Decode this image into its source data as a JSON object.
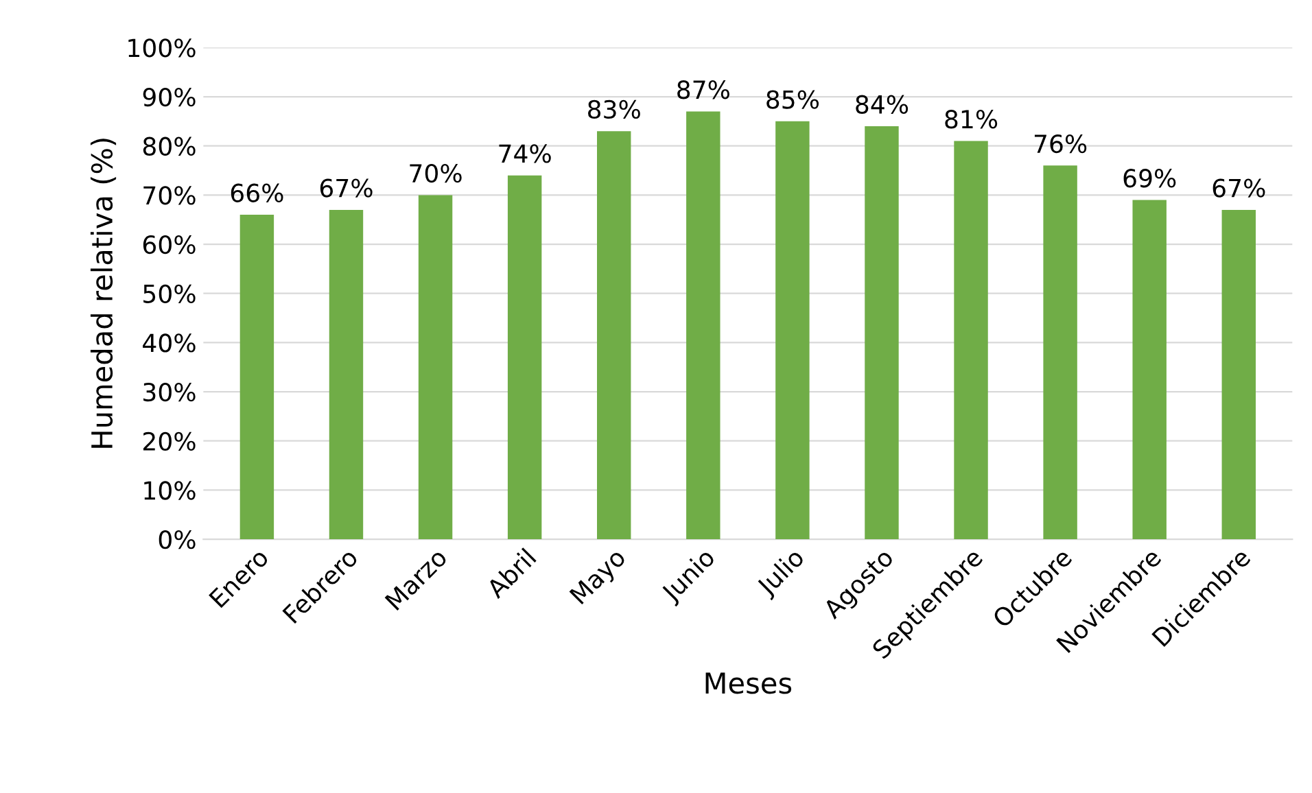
{
  "chart_data": {
    "type": "bar",
    "xlabel": "Meses",
    "ylabel": "Humedad relativa (%)",
    "categories": [
      "Enero",
      "Febrero",
      "Marzo",
      "Abril",
      "Mayo",
      "Junio",
      "Julio",
      "Agosto",
      "Septiembre",
      "Octubre",
      "Noviembre",
      "Diciembre"
    ],
    "values": [
      66,
      67,
      70,
      74,
      83,
      87,
      85,
      84,
      81,
      76,
      69,
      67
    ],
    "value_labels": [
      "66%",
      "67%",
      "70%",
      "74%",
      "83%",
      "87%",
      "85%",
      "84%",
      "81%",
      "76%",
      "69%",
      "67%"
    ],
    "color": "#70ad47",
    "ylim": [
      0,
      100
    ],
    "yticks": [
      {
        "value": 0,
        "label": "0%"
      },
      {
        "value": 10,
        "label": "10%"
      },
      {
        "value": 20,
        "label": "20%"
      },
      {
        "value": 30,
        "label": "30%"
      },
      {
        "value": 40,
        "label": "40%"
      },
      {
        "value": 50,
        "label": "50%"
      },
      {
        "value": 60,
        "label": "60%"
      },
      {
        "value": 70,
        "label": "70%"
      },
      {
        "value": 80,
        "label": "80%"
      },
      {
        "value": 90,
        "label": "90%"
      },
      {
        "value": 100,
        "label": "100%"
      }
    ],
    "grid": "y",
    "legend": false
  }
}
